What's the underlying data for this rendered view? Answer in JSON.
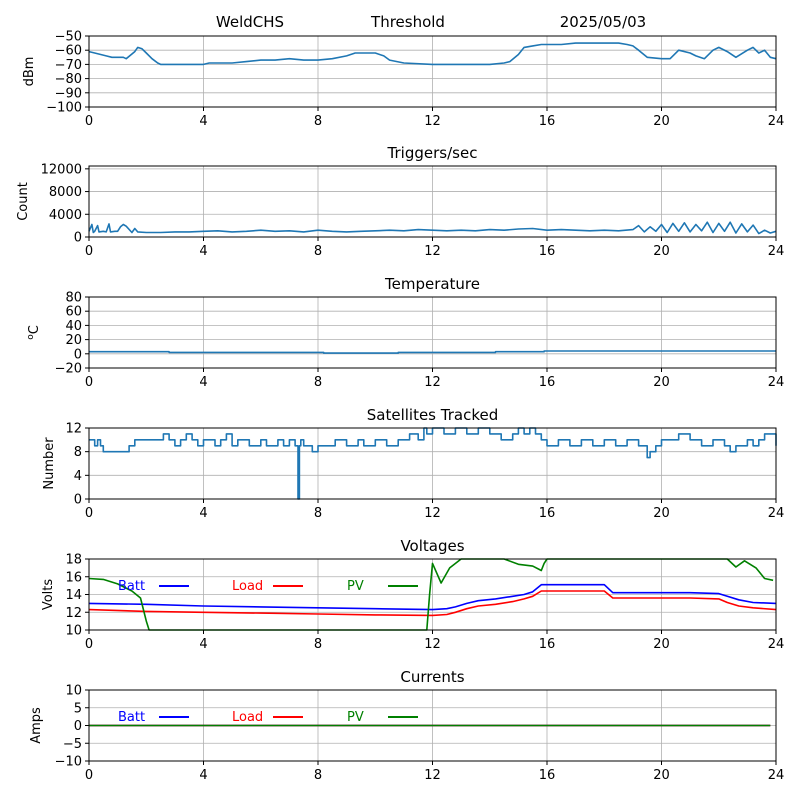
{
  "header": {
    "station": "WeldCHS",
    "plot_type": "Threshold",
    "date": "2025/05/03"
  },
  "colors": {
    "default": "#1f77b4",
    "batt": "#0000ff",
    "load": "#ff0000",
    "pv": "#008000",
    "grid": "#b0b0b0"
  },
  "chart_data": [
    {
      "type": "line",
      "title": "",
      "ylabel": "dBm",
      "xlim": [
        0,
        24
      ],
      "ylim": [
        -100,
        -50
      ],
      "xticks": [
        "0",
        "4",
        "8",
        "12",
        "16",
        "20",
        "24"
      ],
      "yticks": [
        "−50",
        "−60",
        "−70",
        "−80",
        "−90",
        "−100"
      ],
      "ytick_values": [
        -50,
        -60,
        -70,
        -80,
        -90,
        -100
      ],
      "grid": true,
      "series": [
        {
          "name": "",
          "color": "#1f77b4",
          "x": [
            0,
            0.2,
            0.6,
            0.8,
            1.2,
            1.3,
            1.6,
            1.7,
            1.85,
            2.0,
            2.2,
            2.4,
            2.5,
            2.8,
            3.5,
            4.0,
            4.2,
            4.6,
            5.0,
            5.5,
            6.0,
            6.5,
            7.0,
            7.5,
            8.0,
            8.5,
            9.0,
            9.3,
            9.6,
            10.0,
            10.3,
            10.5,
            11.0,
            12.0,
            13.0,
            14.0,
            14.5,
            14.7,
            15.0,
            15.2,
            15.5,
            15.8,
            16.0,
            16.5,
            17.0,
            17.5,
            18.0,
            18.5,
            18.8,
            19.0,
            19.2,
            19.5,
            20.0,
            20.3,
            20.6,
            21.0,
            21.2,
            21.5,
            21.8,
            22.0,
            22.3,
            22.6,
            23.0,
            23.2,
            23.4,
            23.6,
            23.8,
            24.0
          ],
          "y": [
            -61,
            -62,
            -64,
            -65,
            -65,
            -66,
            -61,
            -58,
            -59,
            -62,
            -66,
            -69,
            -70,
            -70,
            -70,
            -70,
            -69,
            -69,
            -69,
            -68,
            -67,
            -67,
            -66,
            -67,
            -67,
            -66,
            -64,
            -62,
            -62,
            -62,
            -64,
            -67,
            -69,
            -70,
            -70,
            -70,
            -69,
            -68,
            -63,
            -58,
            -57,
            -56,
            -56,
            -56,
            -55,
            -55,
            -55,
            -55,
            -56,
            -57,
            -60,
            -65,
            -66,
            -66,
            -60,
            -62,
            -64,
            -66,
            -60,
            -58,
            -61,
            -65,
            -60,
            -58,
            -62,
            -60,
            -65,
            -66
          ]
        }
      ]
    },
    {
      "type": "line",
      "title": "Triggers/sec",
      "ylabel": "Count",
      "xlim": [
        0,
        24
      ],
      "ylim": [
        0,
        12500
      ],
      "xticks": [
        "0",
        "4",
        "8",
        "12",
        "16",
        "20",
        "24"
      ],
      "yticks": [
        "0",
        "4000",
        "8000",
        "12000"
      ],
      "ytick_values": [
        0,
        4000,
        8000,
        12000
      ],
      "grid": true,
      "series": [
        {
          "name": "",
          "color": "#1f77b4",
          "x": [
            0,
            0.1,
            0.15,
            0.2,
            0.3,
            0.35,
            0.5,
            0.6,
            0.7,
            0.75,
            0.9,
            1.0,
            1.1,
            1.2,
            1.3,
            1.5,
            1.6,
            1.7,
            2.0,
            2.5,
            3.0,
            3.5,
            4.0,
            4.5,
            5.0,
            5.5,
            6.0,
            6.5,
            7.0,
            7.5,
            8.0,
            8.5,
            9.0,
            9.5,
            10.0,
            10.5,
            11.0,
            11.5,
            12.0,
            12.5,
            13.0,
            13.5,
            14.0,
            14.5,
            15.0,
            15.5,
            16.0,
            16.5,
            17.0,
            17.5,
            18.0,
            18.5,
            19.0,
            19.2,
            19.4,
            19.6,
            19.8,
            20.0,
            20.2,
            20.4,
            20.6,
            20.8,
            21.0,
            21.2,
            21.4,
            21.6,
            21.8,
            22.0,
            22.2,
            22.4,
            22.6,
            22.8,
            23.0,
            23.2,
            23.4,
            23.6,
            23.8,
            24.0
          ],
          "y": [
            1000,
            2200,
            800,
            1000,
            2000,
            900,
            1000,
            900,
            2300,
            900,
            1000,
            1000,
            1800,
            2200,
            1900,
            800,
            1500,
            900,
            800,
            800,
            900,
            900,
            1000,
            1100,
            900,
            1000,
            1200,
            1000,
            1100,
            900,
            1200,
            1000,
            900,
            1000,
            1100,
            1200,
            1100,
            1300,
            1200,
            1100,
            1200,
            1100,
            1300,
            1200,
            1400,
            1500,
            1200,
            1300,
            1200,
            1100,
            1200,
            1100,
            1300,
            2000,
            900,
            1800,
            1000,
            2200,
            800,
            2400,
            1000,
            2500,
            900,
            2200,
            1100,
            2600,
            800,
            2400,
            1000,
            2600,
            700,
            2300,
            900,
            2100,
            600,
            1200,
            700,
            1000
          ]
        }
      ]
    },
    {
      "type": "line",
      "title": "Temperature",
      "ylabel": "°C",
      "ylabel_prefix": "o",
      "ylabel_main": "C",
      "xlim": [
        0,
        24
      ],
      "ylim": [
        -20,
        80
      ],
      "xticks": [
        "0",
        "4",
        "8",
        "12",
        "16",
        "20",
        "24"
      ],
      "yticks": [
        "−20",
        "0",
        "20",
        "40",
        "60",
        "80"
      ],
      "ytick_values": [
        -20,
        0,
        20,
        40,
        60,
        80
      ],
      "grid": true,
      "series": [
        {
          "name": "",
          "color": "#1f77b4",
          "x": [
            0,
            2.8,
            2.8,
            8.2,
            8.2,
            10.8,
            10.8,
            14.2,
            14.2,
            15.9,
            15.9,
            24
          ],
          "y": [
            3,
            3,
            2,
            2,
            1,
            1,
            2,
            2,
            3,
            3,
            4,
            4
          ]
        }
      ]
    },
    {
      "type": "line",
      "title": "Satellites Tracked",
      "ylabel": "Number",
      "xlim": [
        0,
        24
      ],
      "ylim": [
        0,
        12
      ],
      "xticks": [
        "0",
        "4",
        "8",
        "12",
        "16",
        "20",
        "24"
      ],
      "yticks": [
        "0",
        "4",
        "8",
        "12"
      ],
      "ytick_values": [
        0,
        4,
        8,
        12
      ],
      "grid": true,
      "series": [
        {
          "name": "",
          "color": "#1f77b4",
          "step": true,
          "x": [
            0,
            0.2,
            0.3,
            0.4,
            0.5,
            1.4,
            1.6,
            2.6,
            2.8,
            3.0,
            3.2,
            3.4,
            3.6,
            3.8,
            4.0,
            4.4,
            4.6,
            4.8,
            5.0,
            5.2,
            5.6,
            6.0,
            6.2,
            6.6,
            6.8,
            7.0,
            7.2,
            7.3,
            7.35,
            7.4,
            7.5,
            7.8,
            8.0,
            8.6,
            9.0,
            9.4,
            9.6,
            10.0,
            10.4,
            10.8,
            11.2,
            11.5,
            11.7,
            11.8,
            12.0,
            12.4,
            12.8,
            13.2,
            13.6,
            14.0,
            14.4,
            14.8,
            15.0,
            15.2,
            15.4,
            15.6,
            15.8,
            16.0,
            16.4,
            16.8,
            17.2,
            17.6,
            18.0,
            18.4,
            18.8,
            19.2,
            19.5,
            19.6,
            19.8,
            20.0,
            20.6,
            21.0,
            21.4,
            21.8,
            22.2,
            22.4,
            22.6,
            23.0,
            23.2,
            23.4,
            23.6,
            24.0
          ],
          "y": [
            10,
            9,
            10,
            9,
            8,
            9,
            10,
            11,
            10,
            9,
            10,
            11,
            10,
            9,
            10,
            9,
            10,
            11,
            9,
            10,
            9,
            10,
            9,
            10,
            9,
            10,
            9,
            0,
            9,
            10,
            9,
            8,
            9,
            10,
            9,
            10,
            9,
            10,
            9,
            10,
            11,
            10,
            12,
            11,
            12,
            11,
            12,
            11,
            12,
            11,
            10,
            11,
            12,
            11,
            12,
            11,
            10,
            9,
            10,
            9,
            10,
            9,
            10,
            9,
            10,
            9,
            7,
            8,
            9,
            10,
            11,
            10,
            9,
            10,
            9,
            8,
            9,
            10,
            9,
            10,
            11,
            9
          ]
        }
      ]
    },
    {
      "type": "line",
      "title": "Voltages",
      "ylabel": "Volts",
      "xlim": [
        0,
        24
      ],
      "ylim": [
        10,
        18
      ],
      "xticks": [
        "0",
        "4",
        "8",
        "12",
        "16",
        "20",
        "24"
      ],
      "yticks": [
        "10",
        "12",
        "14",
        "16",
        "18"
      ],
      "ytick_values": [
        10,
        12,
        14,
        16,
        18
      ],
      "grid": true,
      "legend": "top-left",
      "series": [
        {
          "name": "Batt",
          "color": "#0000ff",
          "x": [
            0,
            2,
            4,
            6,
            8,
            10,
            12,
            12.5,
            12.8,
            13.2,
            13.6,
            14.2,
            14.8,
            15.2,
            15.5,
            15.8,
            16.2,
            17.0,
            18.0,
            18.3,
            19.0,
            20.0,
            21.0,
            22.0,
            22.3,
            22.7,
            23.2,
            24.0
          ],
          "y": [
            13.0,
            12.9,
            12.7,
            12.6,
            12.5,
            12.4,
            12.3,
            12.4,
            12.6,
            13.0,
            13.3,
            13.5,
            13.8,
            14.0,
            14.3,
            15.1,
            15.1,
            15.1,
            15.1,
            14.2,
            14.2,
            14.2,
            14.2,
            14.1,
            13.8,
            13.4,
            13.1,
            13.0
          ]
        },
        {
          "name": "Load",
          "color": "#ff0000",
          "x": [
            0,
            2,
            4,
            6,
            8,
            10,
            12,
            12.5,
            12.8,
            13.2,
            13.6,
            14.2,
            14.8,
            15.2,
            15.5,
            15.8,
            16.2,
            17.0,
            18.0,
            18.3,
            19.0,
            20.0,
            21.0,
            22.0,
            22.3,
            22.7,
            23.2,
            24.0
          ],
          "y": [
            12.3,
            12.1,
            12.0,
            11.9,
            11.8,
            11.7,
            11.65,
            11.75,
            12.0,
            12.4,
            12.7,
            12.9,
            13.2,
            13.5,
            13.8,
            14.4,
            14.4,
            14.4,
            14.4,
            13.6,
            13.6,
            13.6,
            13.6,
            13.5,
            13.1,
            12.7,
            12.5,
            12.3
          ]
        },
        {
          "name": "PV",
          "color": "#008000",
          "x": [
            0,
            0.5,
            1.0,
            1.5,
            1.8,
            2.0,
            2.1,
            11.8,
            11.9,
            12.0,
            12.3,
            12.6,
            13.0,
            14.0,
            14.5,
            15.0,
            15.5,
            15.8,
            15.9,
            16.0,
            22.3,
            22.6,
            22.9,
            23.3,
            23.6,
            23.9
          ],
          "y": [
            15.8,
            15.7,
            15.2,
            14.4,
            13.6,
            11.0,
            10.0,
            10.0,
            14.0,
            17.5,
            15.3,
            17.0,
            18.0,
            18.0,
            18.0,
            17.4,
            17.2,
            16.7,
            17.5,
            18.0,
            18.0,
            17.1,
            17.8,
            17.0,
            15.8,
            15.6
          ]
        }
      ]
    },
    {
      "type": "line",
      "title": "Currents",
      "ylabel": "Amps",
      "xlim": [
        0,
        24
      ],
      "ylim": [
        -10,
        10
      ],
      "xticks": [
        "0",
        "4",
        "8",
        "12",
        "16",
        "20",
        "24"
      ],
      "yticks": [
        "−10",
        "−5",
        "0",
        "5",
        "10"
      ],
      "ytick_values": [
        -10,
        -5,
        0,
        5,
        10
      ],
      "grid": true,
      "legend": "top-left",
      "series": [
        {
          "name": "Batt",
          "color": "#0000ff",
          "x": [
            0,
            23.8
          ],
          "y": [
            0,
            0
          ]
        },
        {
          "name": "Load",
          "color": "#ff0000",
          "x": [
            0,
            23.8
          ],
          "y": [
            0,
            0
          ]
        },
        {
          "name": "PV",
          "color": "#008000",
          "x": [
            0,
            23.8
          ],
          "y": [
            0,
            0
          ]
        }
      ]
    }
  ]
}
